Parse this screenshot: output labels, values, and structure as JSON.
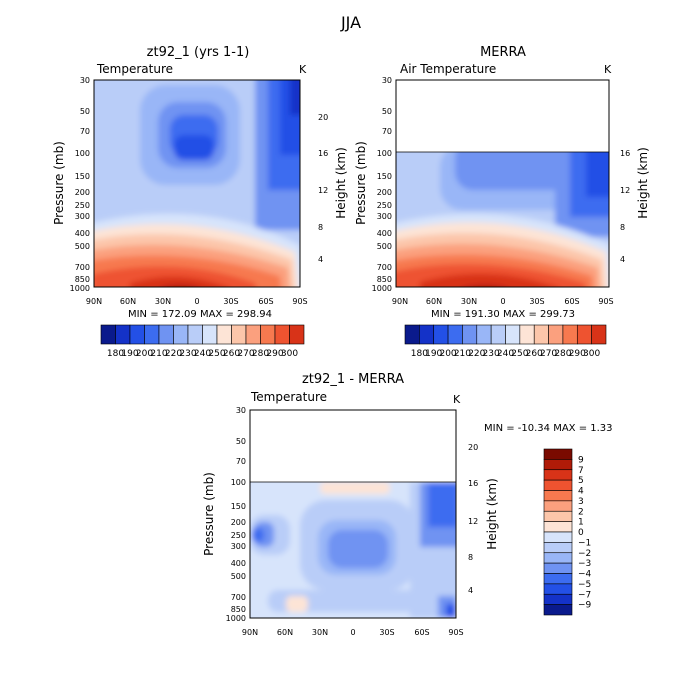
{
  "page": {
    "title": "JJA"
  },
  "colors": {
    "abs_palette": [
      "#0a1a8c",
      "#1432c8",
      "#2350e6",
      "#3c6cf0",
      "#6f93f2",
      "#99b6f7",
      "#b9cdf8",
      "#d7e4fb",
      "#fde4d6",
      "#fcc6aa",
      "#fba07e",
      "#f7794f",
      "#ee5330",
      "#d83318",
      "#b01b08",
      "#7a0a00"
    ],
    "diff_palette": [
      "#0a1a8c",
      "#1432c8",
      "#2350e6",
      "#3c6cf0",
      "#6f93f2",
      "#99b6f7",
      "#b9cdf8",
      "#d7e4fb",
      "#fde4d6",
      "#fcc6aa",
      "#fba07e",
      "#f7794f",
      "#ee5330",
      "#d83318",
      "#b01b08",
      "#7a0a00"
    ]
  },
  "panels": [
    {
      "title": "zt92_1 (yrs 1-1)",
      "subtitle": "Temperature",
      "units": "K",
      "ylabel": "Pressure (mb)",
      "ylabel_right": "Height (km)",
      "stats": "MIN = 172.09   MAX = 298.94"
    },
    {
      "title": "MERRA",
      "subtitle": "Air Temperature",
      "units": "K",
      "ylabel": "Pressure (mb)",
      "ylabel_right": "Height (km)",
      "stats": "MIN = 191.30   MAX = 299.73"
    },
    {
      "title": "zt92_1 - MERRA",
      "subtitle": "Temperature",
      "units": "K",
      "ylabel": "Pressure (mb)",
      "ylabel_right": "Height (km)",
      "stats": "MIN = -10.34   MAX =    1.33"
    }
  ],
  "colorbars": {
    "abs_labels": [
      "180",
      "190",
      "200",
      "210",
      "220",
      "230",
      "240",
      "250",
      "260",
      "270",
      "280",
      "290",
      "300"
    ],
    "diff_labels": [
      "9",
      "7",
      "5",
      "4",
      "3",
      "2",
      "1",
      "0",
      "−1",
      "−2",
      "−3",
      "−4",
      "−5",
      "−7",
      "−9"
    ]
  },
  "chart_data": [
    {
      "type": "heatmap",
      "title": "zt92_1 (yrs 1-1)",
      "variable": "Temperature",
      "units": "K",
      "xlabel": "",
      "ylabel": "Pressure (mb)",
      "ylabel_right": "Height (km)",
      "x_ticks": [
        "90N",
        "60N",
        "30N",
        "0",
        "30S",
        "60S",
        "90S"
      ],
      "y_ticks": [
        30,
        50,
        70,
        100,
        150,
        200,
        250,
        300,
        400,
        500,
        700,
        850,
        1000
      ],
      "y_scale": "log",
      "ylim": [
        1000,
        30
      ],
      "height_ticks_km": [
        4,
        8,
        12,
        16,
        20
      ],
      "min": 172.09,
      "max": 298.94,
      "contour_levels": [
        180,
        190,
        200,
        210,
        220,
        230,
        240,
        250,
        260,
        270,
        280,
        290,
        300
      ]
    },
    {
      "type": "heatmap",
      "title": "MERRA",
      "variable": "Air Temperature",
      "units": "K",
      "xlabel": "",
      "ylabel": "Pressure (mb)",
      "ylabel_right": "Height (km)",
      "x_ticks": [
        "90N",
        "60N",
        "30N",
        "0",
        "30S",
        "60S",
        "90S"
      ],
      "y_ticks": [
        30,
        50,
        70,
        100,
        150,
        200,
        250,
        300,
        400,
        500,
        700,
        850,
        1000
      ],
      "y_scale": "log",
      "ylim": [
        1000,
        30
      ],
      "height_ticks_km": [
        4,
        8,
        12,
        16
      ],
      "data_top_mb": 100,
      "min": 191.3,
      "max": 299.73,
      "contour_levels": [
        180,
        190,
        200,
        210,
        220,
        230,
        240,
        250,
        260,
        270,
        280,
        290,
        300
      ]
    },
    {
      "type": "heatmap",
      "title": "zt92_1 - MERRA",
      "variable": "Temperature",
      "units": "K",
      "xlabel": "",
      "ylabel": "Pressure (mb)",
      "ylabel_right": "Height (km)",
      "x_ticks": [
        "90N",
        "60N",
        "30N",
        "0",
        "30S",
        "60S",
        "90S"
      ],
      "y_ticks": [
        30,
        50,
        70,
        100,
        150,
        200,
        250,
        300,
        400,
        500,
        700,
        850,
        1000
      ],
      "y_scale": "log",
      "ylim": [
        1000,
        30
      ],
      "height_ticks_km": [
        4,
        8,
        12,
        16,
        20
      ],
      "data_top_mb": 100,
      "min": -10.34,
      "max": 1.33,
      "contour_levels": [
        -9,
        -7,
        -5,
        -4,
        -3,
        -2,
        -1,
        0,
        1,
        2,
        3,
        4,
        5,
        7,
        9
      ]
    }
  ]
}
